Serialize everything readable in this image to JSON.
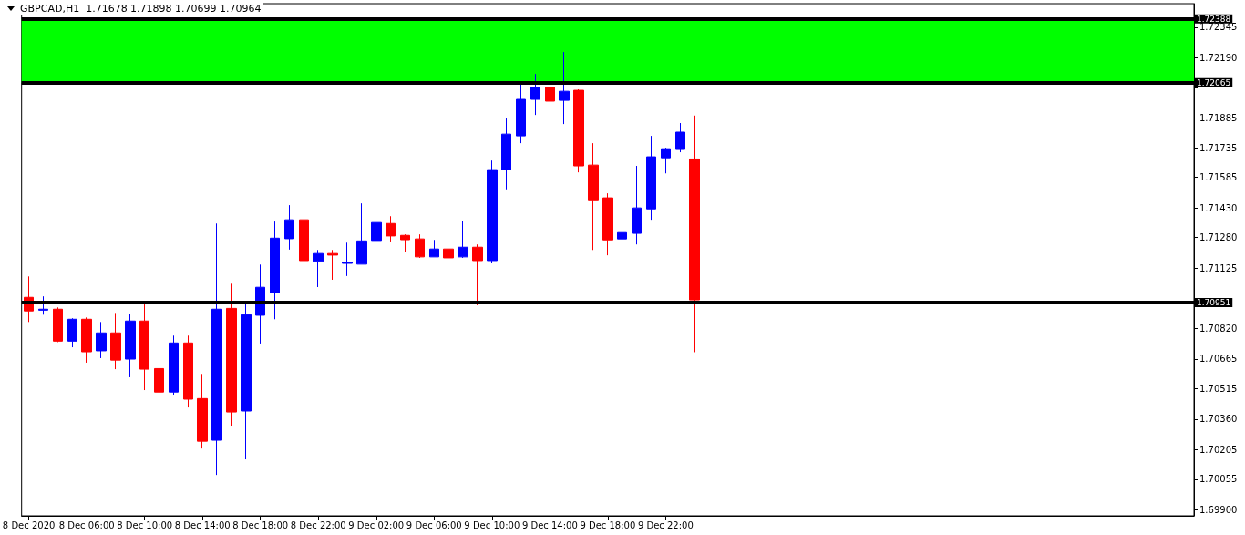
{
  "chart_data": {
    "type": "candlestick",
    "title": "GBPCAD,H1  1.71678 1.71898 1.70699 1.70964",
    "categories": [
      "8 Dec 2020",
      null,
      null,
      null,
      "8 Dec 06:00",
      null,
      null,
      null,
      "8 Dec 10:00",
      null,
      null,
      null,
      "8 Dec 14:00",
      null,
      null,
      null,
      "8 Dec 18:00",
      null,
      null,
      null,
      "8 Dec 22:00",
      null,
      null,
      null,
      "9 Dec 02:00",
      null,
      null,
      null,
      "9 Dec 06:00",
      null,
      null,
      null,
      "9 Dec 10:00",
      null,
      null,
      null,
      "9 Dec 14:00",
      null,
      null,
      null,
      "9 Dec 18:00",
      null,
      null,
      null,
      "9 Dec 22:00",
      null,
      null,
      null,
      null,
      null,
      null,
      null,
      null,
      null,
      null,
      null,
      null,
      null,
      null,
      null,
      null,
      null,
      null,
      null,
      null,
      null,
      null,
      null,
      null,
      null,
      null,
      null,
      null,
      null,
      null,
      null,
      null,
      null,
      null,
      null,
      null
    ],
    "ohlc": [
      [
        1.70977,
        1.71083,
        1.70852,
        1.70908
      ],
      [
        1.70912,
        1.70982,
        1.70889,
        1.70917
      ],
      [
        1.70917,
        1.70926,
        1.7075,
        1.70755
      ],
      [
        1.70755,
        1.70871,
        1.70724,
        1.70866
      ],
      [
        1.70866,
        1.70875,
        1.70646,
        1.70701
      ],
      [
        1.70706,
        1.70852,
        1.70669,
        1.70797
      ],
      [
        1.70797,
        1.70898,
        1.70613,
        1.70659
      ],
      [
        1.70664,
        1.70894,
        1.70572,
        1.70857
      ],
      [
        1.70857,
        1.70945,
        1.70507,
        1.70613
      ],
      [
        1.70616,
        1.70701,
        1.7041,
        1.70497
      ],
      [
        1.70497,
        1.70783,
        1.70484,
        1.70746
      ],
      [
        1.70746,
        1.70783,
        1.70419,
        1.70461
      ],
      [
        1.70464,
        1.70589,
        1.70211,
        1.70248
      ],
      [
        1.70253,
        1.71351,
        1.70077,
        1.70917
      ],
      [
        1.70921,
        1.71046,
        1.70327,
        1.70396
      ],
      [
        1.70401,
        1.70945,
        1.70156,
        1.70889
      ],
      [
        1.70886,
        1.71143,
        1.70743,
        1.71028
      ],
      [
        1.70999,
        1.71361,
        1.70866,
        1.71277
      ],
      [
        1.71274,
        1.71444,
        1.71219,
        1.7137
      ],
      [
        1.7137,
        1.7137,
        1.71131,
        1.71163
      ],
      [
        1.71159,
        1.71217,
        1.71029,
        1.71199
      ],
      [
        1.71199,
        1.71217,
        1.71066,
        1.71191
      ],
      [
        1.71149,
        1.71254,
        1.71085,
        1.71154
      ],
      [
        1.71145,
        1.71453,
        1.71145,
        1.71263
      ],
      [
        1.71265,
        1.71365,
        1.71242,
        1.71356
      ],
      [
        1.71351,
        1.71388,
        1.7126,
        1.71288
      ],
      [
        1.71291,
        1.71296,
        1.71209,
        1.71269
      ],
      [
        1.71273,
        1.71296,
        1.71177,
        1.71182
      ],
      [
        1.71182,
        1.71268,
        1.71182,
        1.71222
      ],
      [
        1.71222,
        1.7124,
        1.71177,
        1.71177
      ],
      [
        1.71182,
        1.71365,
        1.71177,
        1.71231
      ],
      [
        1.71231,
        1.71245,
        1.70937,
        1.71163
      ],
      [
        1.71163,
        1.7167,
        1.71149,
        1.71624
      ],
      [
        1.71624,
        1.71883,
        1.71524,
        1.71804
      ],
      [
        1.71795,
        1.72054,
        1.71758,
        1.7198
      ],
      [
        1.7198,
        1.72109,
        1.71901,
        1.7204
      ],
      [
        1.7204,
        1.72059,
        1.71841,
        1.71971
      ],
      [
        1.71975,
        1.7222,
        1.71855,
        1.72021
      ],
      [
        1.72026,
        1.72031,
        1.7161,
        1.71643
      ],
      [
        1.71647,
        1.71758,
        1.71217,
        1.71471
      ],
      [
        1.71481,
        1.71504,
        1.7119,
        1.71268
      ],
      [
        1.71273,
        1.71421,
        1.71116,
        1.71305
      ],
      [
        1.71301,
        1.71643,
        1.71245,
        1.7143
      ],
      [
        1.71425,
        1.71795,
        1.7137,
        1.71689
      ],
      [
        1.71684,
        1.71735,
        1.71605,
        1.7173
      ],
      [
        1.71726,
        1.7186,
        1.71712,
        1.71814
      ],
      [
        1.71678,
        1.71898,
        1.70699,
        1.70964
      ],
      null,
      null,
      null,
      null,
      null,
      null,
      null,
      null,
      null,
      null,
      null,
      null,
      null,
      null,
      null,
      null,
      null,
      null,
      null,
      null,
      null,
      null,
      null,
      null,
      null,
      null,
      null,
      null,
      null,
      null,
      null,
      null,
      null,
      null
    ],
    "colors": [
      "#ff0000",
      "#0000ff",
      "#ff0000",
      "#0000ff",
      "#ff0000",
      "#0000ff",
      "#ff0000",
      "#0000ff",
      "#ff0000",
      "#ff0000",
      "#0000ff",
      "#ff0000",
      "#ff0000",
      "#0000ff",
      "#ff0000",
      "#0000ff",
      "#0000ff",
      "#0000ff",
      "#0000ff",
      "#ff0000",
      "#0000ff",
      "#ff0000",
      "#0000ff",
      "#0000ff",
      "#0000ff",
      "#ff0000",
      "#ff0000",
      "#ff0000",
      "#0000ff",
      "#ff0000",
      "#0000ff",
      "#ff0000",
      "#0000ff",
      "#0000ff",
      "#0000ff",
      "#0000ff",
      "#ff0000",
      "#0000ff",
      "#ff0000",
      "#ff0000",
      "#ff0000",
      "#0000ff",
      "#0000ff",
      "#0000ff",
      "#0000ff",
      "#0000ff",
      "#ff0000",
      null,
      null,
      null,
      null,
      null,
      null,
      null,
      null,
      null,
      null,
      null,
      null,
      null,
      null,
      null,
      null,
      null,
      null,
      null,
      null,
      null,
      null,
      null,
      null,
      null,
      null,
      null,
      null,
      null,
      null,
      null,
      null,
      null,
      null
    ],
    "ylim": [
      1.6987,
      1.72465
    ],
    "yticks": [
      {
        "value": 1.699,
        "label": "1.69900"
      },
      {
        "value": 1.70055,
        "label": "1.70055"
      },
      {
        "value": 1.70205,
        "label": "1.70205"
      },
      {
        "value": 1.7036,
        "label": "1.70360"
      },
      {
        "value": 1.70515,
        "label": "1.70515"
      },
      {
        "value": 1.70665,
        "label": "1.70665"
      },
      {
        "value": 1.7082,
        "label": "1.70820"
      },
      {
        "value": 1.71125,
        "label": "1.71125"
      },
      {
        "value": 1.7128,
        "label": "1.71280"
      },
      {
        "value": 1.7143,
        "label": "1.71430"
      },
      {
        "value": 1.71585,
        "label": "1.71585"
      },
      {
        "value": 1.71735,
        "label": "1.71735"
      },
      {
        "value": 1.71885,
        "label": "1.71885"
      },
      {
        "value": 1.7204,
        "label": null
      },
      {
        "value": 1.7219,
        "label": "1.72190"
      },
      {
        "value": 1.72345,
        "label": "1.72345"
      }
    ],
    "ref_lines": [
      {
        "axis": "y",
        "value": 1.72388,
        "label": "1.72388",
        "color": "#000000"
      },
      {
        "axis": "y",
        "value": 1.72065,
        "label": "1.72065",
        "color": "#000000"
      },
      {
        "axis": "y",
        "value": 1.70951,
        "label": "1.70951",
        "color": "#000000"
      }
    ],
    "bands": [
      {
        "axis": "y",
        "from": 1.72065,
        "to": 1.72388,
        "color": "#00ff00"
      }
    ],
    "grid": false
  }
}
